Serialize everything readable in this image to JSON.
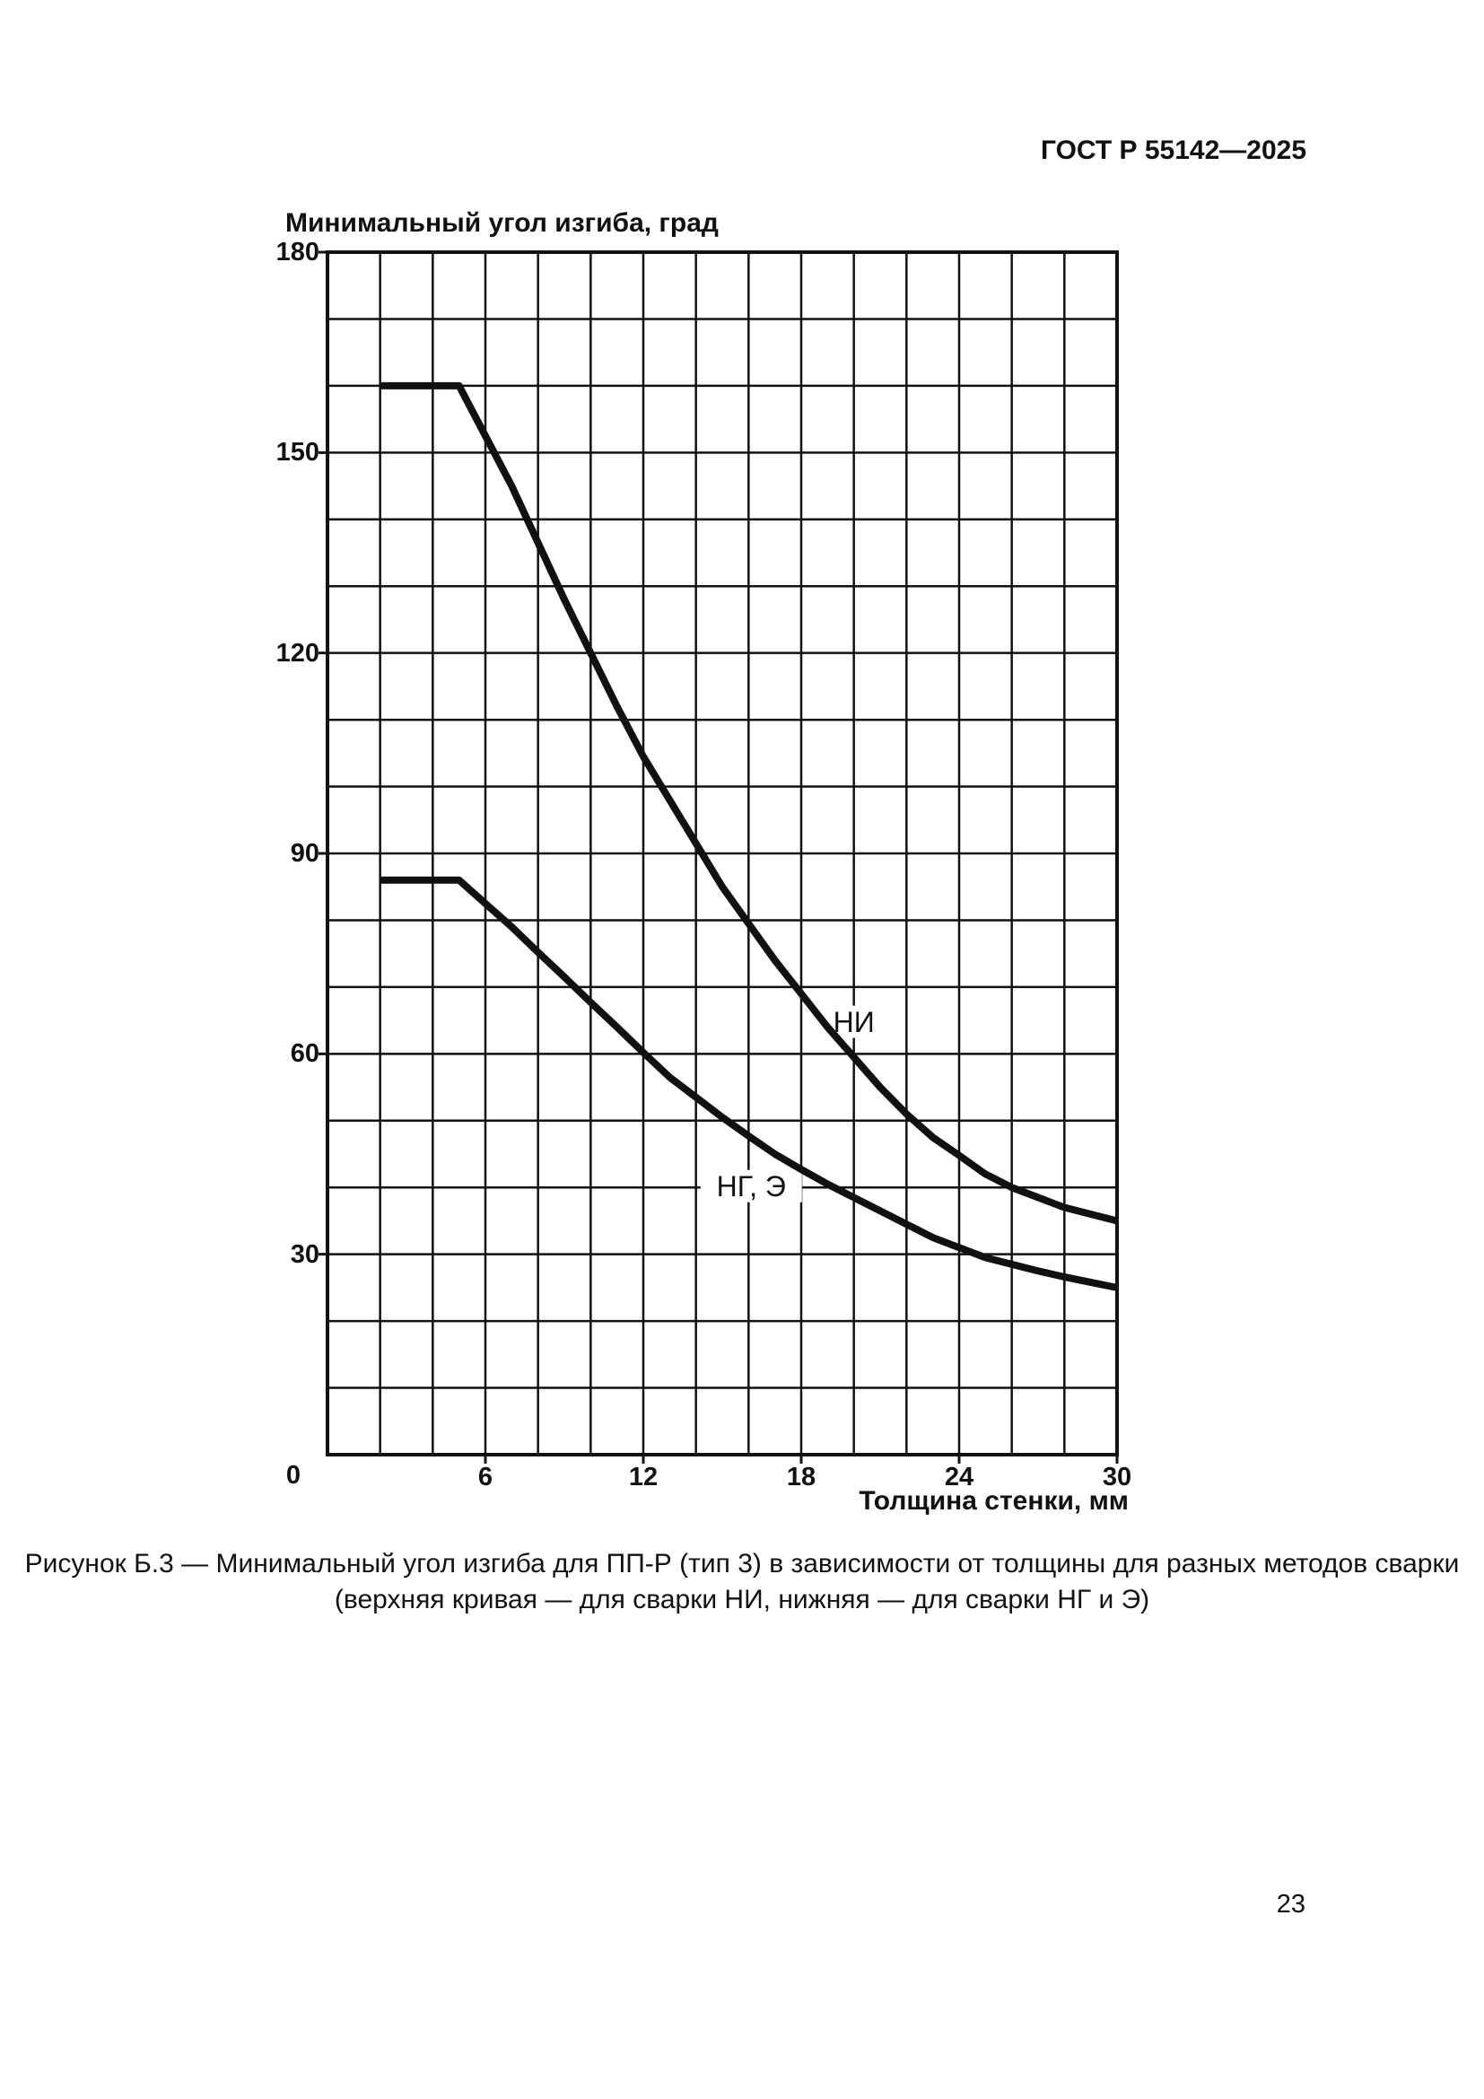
{
  "page": {
    "header": "ГОСТ Р 55142—2025",
    "page_number": "23",
    "caption_line1": "Рисунок Б.3 — Минимальный угол изгиба для ПП-Р (тип 3) в зависимости от толщины для разных методов сварки",
    "caption_line2": "(верхняя кривая — для сварки НИ, нижняя — для сварки НГ и Э)"
  },
  "chart_data": {
    "type": "line",
    "title": "",
    "ylabel": "Минимальный угол изгиба, град",
    "xlabel": "Толщина стенки, мм",
    "xlim": [
      0,
      30
    ],
    "ylim": [
      0,
      180
    ],
    "x_grid_step": 2,
    "y_grid_step": 10,
    "grid": true,
    "x_ticks": [
      6,
      12,
      18,
      24,
      30
    ],
    "y_ticks": [
      180,
      150,
      120,
      90,
      60,
      30
    ],
    "origin_label": "0",
    "line_color": "#111111",
    "background": "#ffffff",
    "series": [
      {
        "name": "НИ",
        "label_pos": {
          "x": 20.0,
          "y": 64.8
        },
        "points": [
          [
            2,
            160
          ],
          [
            5,
            160
          ],
          [
            6,
            152.5
          ],
          [
            7,
            145
          ],
          [
            8,
            136.5
          ],
          [
            9,
            128
          ],
          [
            10,
            120
          ],
          [
            11,
            112
          ],
          [
            12,
            104.5
          ],
          [
            13,
            98
          ],
          [
            14,
            91.5
          ],
          [
            15,
            85
          ],
          [
            16,
            79.5
          ],
          [
            17,
            74
          ],
          [
            18,
            69
          ],
          [
            19,
            64
          ],
          [
            20,
            59.5
          ],
          [
            21,
            55
          ],
          [
            22,
            51
          ],
          [
            23,
            47.5
          ],
          [
            24,
            44.8
          ],
          [
            25,
            42
          ],
          [
            26,
            40
          ],
          [
            27,
            38.5
          ],
          [
            28,
            37
          ],
          [
            29,
            36
          ],
          [
            30,
            35
          ]
        ]
      },
      {
        "name": "НГ, Э",
        "label_pos": {
          "x": 16.1,
          "y": 40.2
        },
        "points": [
          [
            2,
            86
          ],
          [
            5,
            86
          ],
          [
            6,
            82.5
          ],
          [
            7,
            79
          ],
          [
            8,
            75.2
          ],
          [
            9,
            71.5
          ],
          [
            10,
            67.7
          ],
          [
            11,
            64
          ],
          [
            12,
            60.2
          ],
          [
            13,
            56.5
          ],
          [
            14,
            53.5
          ],
          [
            15,
            50.5
          ],
          [
            16,
            47.7
          ],
          [
            17,
            45
          ],
          [
            18,
            42.7
          ],
          [
            19,
            40.5
          ],
          [
            20,
            38.5
          ],
          [
            21,
            36.5
          ],
          [
            22,
            34.5
          ],
          [
            23,
            32.5
          ],
          [
            24,
            31
          ],
          [
            25,
            29.5
          ],
          [
            26,
            28.5
          ],
          [
            27,
            27.5
          ],
          [
            28,
            26.6
          ],
          [
            29,
            25.8
          ],
          [
            30,
            25
          ]
        ]
      }
    ]
  }
}
